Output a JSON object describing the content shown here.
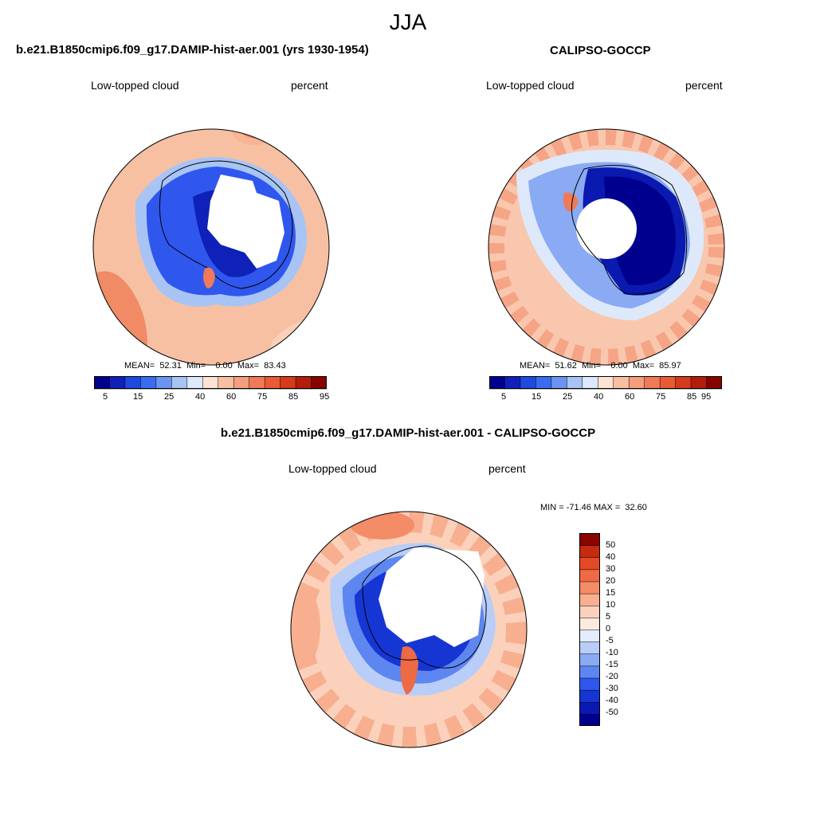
{
  "figure": {
    "title": "JJA"
  },
  "colors": {
    "abs_scale": [
      "#00008f",
      "#0f21b8",
      "#1f4ae0",
      "#3b6cf0",
      "#6b93f2",
      "#a8c4f5",
      "#dde9fb",
      "#fde3d4",
      "#f8bfa1",
      "#f49e7d",
      "#f07a58",
      "#e85b35",
      "#d43a1b",
      "#b31d0b",
      "#860300"
    ],
    "diff_scale": [
      "#00008f",
      "#0a1ab0",
      "#1636d4",
      "#2f57ee",
      "#5d86f0",
      "#8aaaf4",
      "#b8cdf8",
      "#e2ecfc",
      "#fdeadf",
      "#fbd1bc",
      "#f7af8f",
      "#f38c67",
      "#ee6a44",
      "#e24a25",
      "#c52b0f",
      "#8a0400"
    ],
    "coastline": "#000000",
    "land_mask": "#ffffff"
  },
  "panels": {
    "model": {
      "title": "b.e21.B1850cmip6.f09_g17.DAMIP-hist-aer.001 (yrs 1930-1954)",
      "left_label": "Low-topped cloud",
      "right_label": "percent",
      "stats": "MEAN=  52.31  Min=    0.00  Max=  83.43",
      "colorbar_ticks": [
        "5",
        "15",
        "25",
        "40",
        "60",
        "75",
        "85",
        "95"
      ]
    },
    "obs": {
      "title": "CALIPSO-GOCCP",
      "left_label": "Low-topped cloud",
      "right_label": "percent",
      "stats": "MEAN=  51.62  Min=    0.00  Max=  85.97",
      "colorbar_ticks": [
        "5",
        "15",
        "25",
        "40",
        "60",
        "75",
        "85",
        "95"
      ]
    },
    "diff": {
      "title": "b.e21.B1850cmip6.f09_g17.DAMIP-hist-aer.001 - CALIPSO-GOCCP",
      "left_label": "Low-topped cloud",
      "right_label": "percent",
      "stats": "MIN = -71.46 MAX =  32.60",
      "colorbar_ticks": [
        "50",
        "40",
        "30",
        "20",
        "15",
        "10",
        "5",
        "0",
        "-5",
        "-10",
        "-15",
        "-20",
        "-30",
        "-40",
        "-50"
      ]
    }
  }
}
